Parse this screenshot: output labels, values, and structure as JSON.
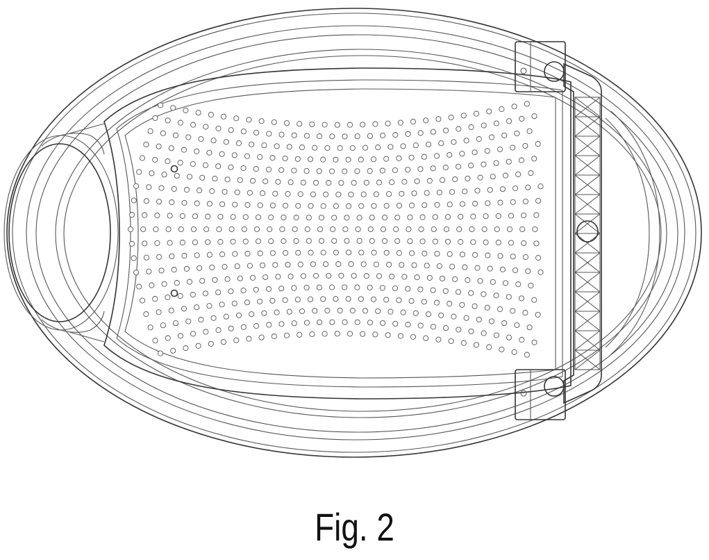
{
  "figure": {
    "caption": "Fig. 2"
  },
  "colors": {
    "line": "#555555",
    "background": "#ffffff"
  }
}
